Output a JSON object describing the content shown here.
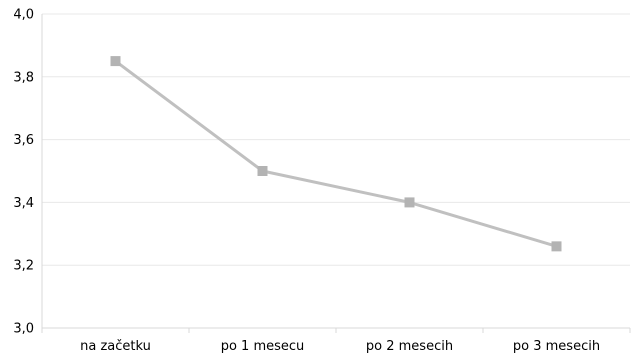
{
  "chart_data": {
    "type": "line",
    "categories": [
      "na začetku",
      "po 1 mesecu",
      "po 2 mesecih",
      "po 3 mesecih"
    ],
    "series": [
      {
        "values": [
          3.85,
          3.5,
          3.4,
          3.26
        ]
      }
    ],
    "ylim": [
      3.0,
      4.0
    ],
    "yticks": [
      "3,0",
      "3,2",
      "3,4",
      "3,6",
      "3,8",
      "4,0"
    ],
    "title": "",
    "xlabel": "",
    "ylabel": "",
    "grid": true,
    "legend": "none",
    "colors": {
      "line": "#c0c0c0",
      "marker": "#b3b3b3",
      "grid": "#e8e8e8",
      "axis": "#d9d9d9"
    }
  }
}
